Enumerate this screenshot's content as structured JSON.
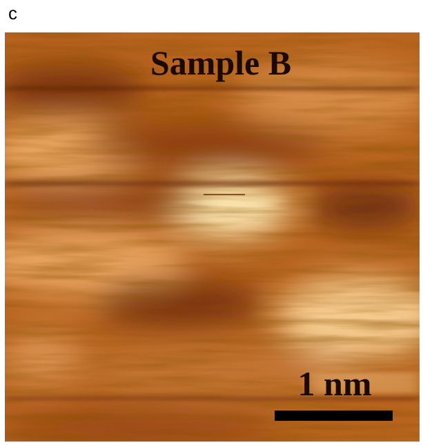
{
  "panel_label": "c",
  "image": {
    "title": "Sample B",
    "scale_bar_label": "1 nm"
  }
}
